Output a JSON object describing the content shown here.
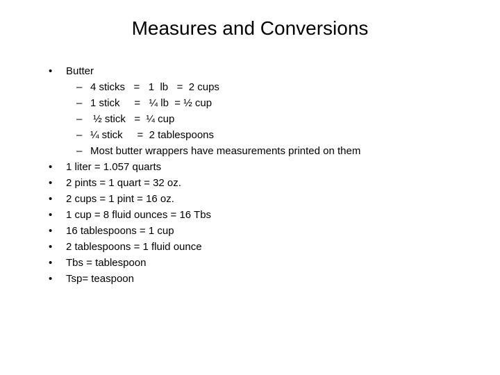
{
  "title": "Measures and Conversions",
  "bullets": [
    "Butter",
    "1 liter = 1.057 quarts",
    "2 pints = 1 quart = 32 oz.",
    "2 cups = 1 pint = 16 oz.",
    "1 cup  = 8 fluid ounces = 16 Tbs",
    "16 tablespoons = 1 cup",
    "2 tablespoons = 1 fluid ounce",
    "Tbs = tablespoon",
    "Tsp= teaspoon"
  ],
  "subBullets": [
    "4 sticks   =   1  lb   =  2 cups",
    "1 stick     =   ¼ lb  = ½ cup",
    " ½ stick   =  ¼ cup",
    "¼ stick     =  2 tablespoons",
    "Most butter wrappers have measurements printed on them"
  ],
  "colors": {
    "background": "#ffffff",
    "text": "#000000"
  },
  "fontSizes": {
    "title": 28,
    "body": 15
  }
}
